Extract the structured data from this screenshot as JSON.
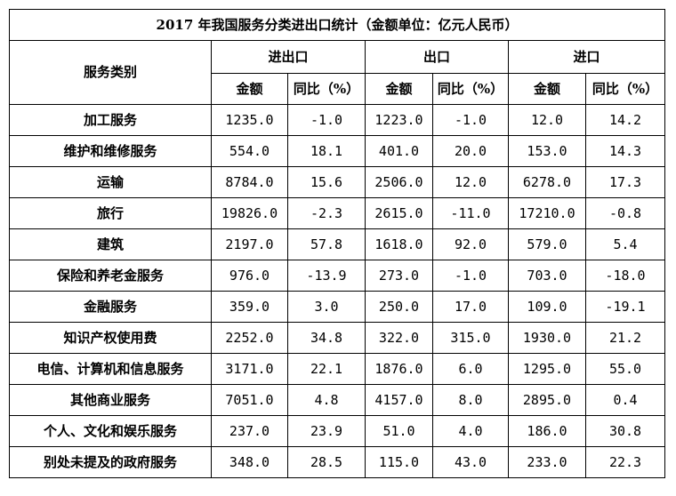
{
  "title": "2017 年我国服务分类进出口统计（金额单位：亿元人民币）",
  "headers": {
    "category": "服务类别",
    "groups": [
      "进出口",
      "出口",
      "进口"
    ],
    "amount": "金额",
    "yoy": "同比（%）"
  },
  "rows": [
    {
      "category": "加工服务",
      "values": [
        "1235.0",
        "-1.0",
        "1223.0",
        "-1.0",
        "12.0",
        "14.2"
      ]
    },
    {
      "category": "维护和维修服务",
      "values": [
        "554.0",
        "18.1",
        "401.0",
        "20.0",
        "153.0",
        "14.3"
      ]
    },
    {
      "category": "运输",
      "values": [
        "8784.0",
        "15.6",
        "2506.0",
        "12.0",
        "6278.0",
        "17.3"
      ]
    },
    {
      "category": "旅行",
      "values": [
        "19826.0",
        "-2.3",
        "2615.0",
        "-11.0",
        "17210.0",
        "-0.8"
      ]
    },
    {
      "category": "建筑",
      "values": [
        "2197.0",
        "57.8",
        "1618.0",
        "92.0",
        "579.0",
        "5.4"
      ]
    },
    {
      "category": "保险和养老金服务",
      "values": [
        "976.0",
        "-13.9",
        "273.0",
        "-1.0",
        "703.0",
        "-18.0"
      ]
    },
    {
      "category": "金融服务",
      "values": [
        "359.0",
        "3.0",
        "250.0",
        "17.0",
        "109.0",
        "-19.1"
      ]
    },
    {
      "category": "知识产权使用费",
      "values": [
        "2252.0",
        "34.8",
        "322.0",
        "315.0",
        "1930.0",
        "21.2"
      ]
    },
    {
      "category": "电信、计算机和信息服务",
      "values": [
        "3171.0",
        "22.1",
        "1876.0",
        "6.0",
        "1295.0",
        "55.0"
      ]
    },
    {
      "category": "其他商业服务",
      "values": [
        "7051.0",
        "4.8",
        "4157.0",
        "8.0",
        "2895.0",
        "0.4"
      ]
    },
    {
      "category": "个人、文化和娱乐服务",
      "values": [
        "237.0",
        "23.9",
        "51.0",
        "4.0",
        "186.0",
        "30.8"
      ]
    },
    {
      "category": "别处未提及的政府服务",
      "values": [
        "348.0",
        "28.5",
        "115.0",
        "43.0",
        "233.0",
        "22.3"
      ]
    }
  ]
}
